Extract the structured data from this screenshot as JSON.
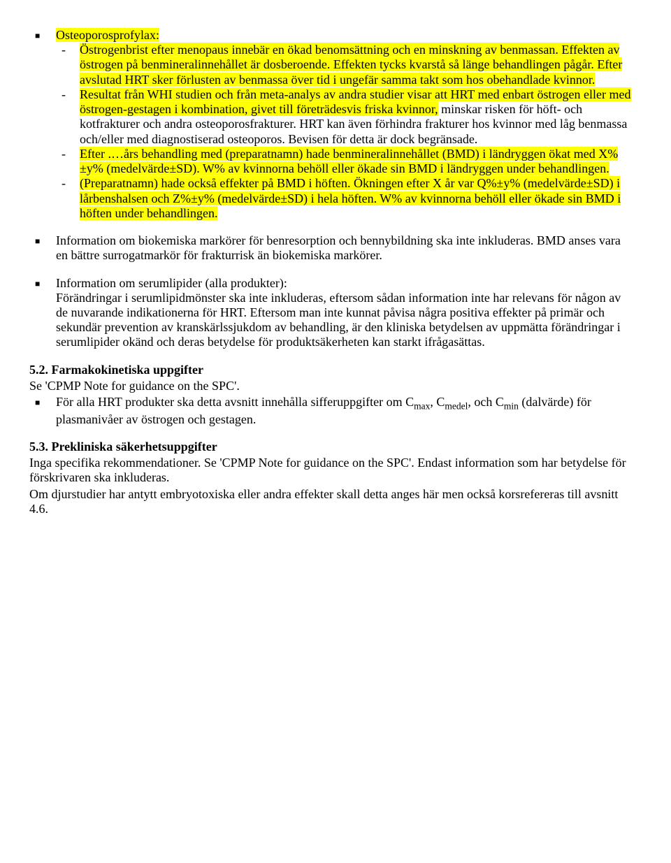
{
  "colors": {
    "highlight": "#ffff00",
    "text": "#000000",
    "background": "#ffffff"
  },
  "typography": {
    "font_family": "Times New Roman",
    "body_fontsize_pt": 13
  },
  "bullets": [
    {
      "lead": {
        "text": "Osteoporosprofylax:",
        "highlighted": true
      },
      "sub": [
        {
          "spans": [
            {
              "t": "Östrogenbrist efter menopaus innebär en ökad benomsättning och en minskning av benmassan. Effekten av östrogen på benmineralinnehållet är dosberoende. Effekten tycks kvarstå så länge behandlingen pågår. Efter avslutad HRT sker förlusten av benmassa över tid i ungefär samma takt som hos obehandlade kvinnor.",
              "hl": true
            }
          ]
        },
        {
          "spans": [
            {
              "t": "Resultat från WHI studien och från meta-analys av andra studier visar att HRT med enbart östrogen eller med östrogen-gestagen i kombination, givet till företrädesvis friska kvinnor,",
              "hl": true
            },
            {
              "t": "  minskar risken för höft- och kotfrakturer och andra osteoporosfrakturer. HRT kan även förhindra frakturer hos kvinnor med låg benmassa och/eller med diagnostiserad osteoporos. Bevisen för detta är dock begränsade.",
              "hl": false
            }
          ]
        },
        {
          "spans": [
            {
              "t": "Efter .…års behandling med (preparatnamn) hade benmineralinnehållet (BMD) i ländryggen ökat med X%±y% (medelvärde±SD). W% av kvinnorna behöll eller ökade sin BMD i ländryggen under behandlingen.",
              "hl": true
            }
          ]
        },
        {
          "spans": [
            {
              "t": "(Preparatnamn) hade också effekter på BMD i höften. Ökningen efter X år var Q%±y% (medelvärde±SD) i lårbenshalsen och Z%±y% (medelvärde±SD) i hela höften. W% av kvinnorna behöll eller ökade sin BMD i höften under behandlingen.",
              "hl": true
            }
          ]
        }
      ]
    },
    {
      "text": "Information om biokemiska markörer för benresorption och bennybildning ska inte inkluderas. BMD anses vara en bättre surrogatmarkör för frakturrisk än biokemiska markörer."
    },
    {
      "lead": {
        "text": "Information om serumlipider (alla produkter):",
        "highlighted": false
      },
      "body": "Förändringar i serumlipidmönster ska inte inkluderas, eftersom sådan information inte har relevans för någon av de nuvarande indikationerna för HRT. Eftersom man inte kunnat påvisa några positiva effekter på primär och sekundär prevention av kranskärlssjukdom av behandling, är den kliniska betydelsen av uppmätta förändringar i serumlipider okänd och deras betydelse för produktsäkerheten kan starkt ifrågasättas."
    }
  ],
  "section_52_title": "5.2. Farmakokinetiska uppgifter",
  "section_52_intro": "Se 'CPMP Note for guidance on the SPC'.",
  "section_52_bullet_pre": "För alla HRT produkter ska detta avsnitt innehålla sifferuppgifter om C",
  "section_52_sub1": "max",
  "section_52_mid1": ", C",
  "section_52_sub2": "medel",
  "section_52_mid2": ", och C",
  "section_52_sub3": "min",
  "section_52_bullet_post": "  (dalvärde) för plasmanivåer av östrogen och gestagen.",
  "section_53_title": "5.3. Prekliniska säkerhetsuppgifter",
  "section_53_p1": "Inga specifika rekommendationer. Se 'CPMP Note for guidance on the SPC'. Endast information som har betydelse för förskrivaren ska inkluderas.",
  "section_53_p2": "Om djurstudier har antytt embryotoxiska eller andra effekter skall detta anges här men också korsrefereras till avsnitt 4.6."
}
